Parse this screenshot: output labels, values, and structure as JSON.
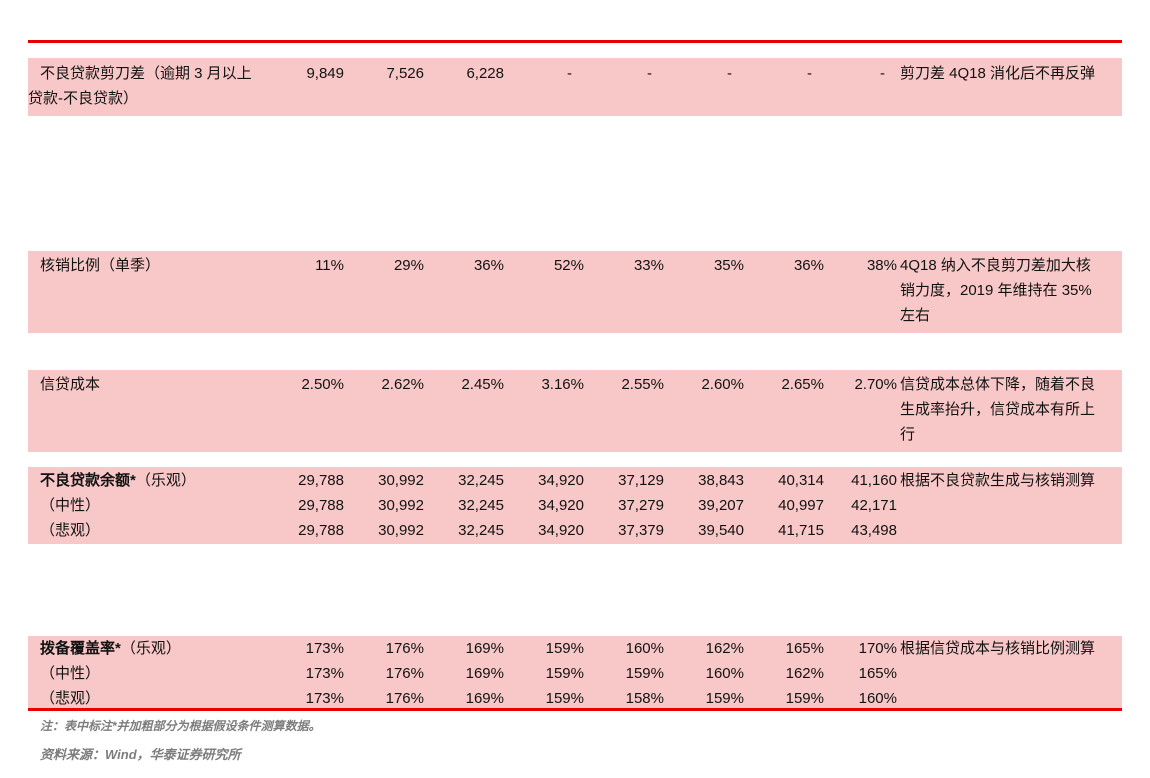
{
  "accent": {
    "rule_color": "#e80000",
    "row_bg": "#f8c8c8",
    "footer_gray": "#7d7d7d"
  },
  "table": {
    "sections": [
      {
        "note": "剪刀差 4Q18 消化后不再反弹",
        "rows": [
          {
            "strong": "",
            "label": "不良贷款剪刀差（逾期 3 月以上贷款-不良贷款）",
            "values": [
              "9,849",
              "7,526",
              "6,228",
              "-",
              "-",
              "-",
              "-",
              "-"
            ]
          }
        ]
      },
      {
        "note": "4Q18 纳入不良剪刀差加大核销力度，2019 年维持在 35%左右",
        "rows": [
          {
            "strong": "",
            "label": "核销比例（单季）",
            "values": [
              "11%",
              "29%",
              "36%",
              "52%",
              "33%",
              "35%",
              "36%",
              "38%"
            ]
          }
        ]
      },
      {
        "note": "信贷成本总体下降，随着不良生成率抬升，信贷成本有所上行",
        "rows": [
          {
            "strong": "",
            "label": "信贷成本",
            "values": [
              "2.50%",
              "2.62%",
              "2.45%",
              "3.16%",
              "2.55%",
              "2.60%",
              "2.65%",
              "2.70%"
            ]
          }
        ]
      },
      {
        "note": "根据不良贷款生成与核销测算",
        "rows": [
          {
            "strong": "不良贷款余额*",
            "label": "（乐观）",
            "values": [
              "29,788",
              "30,992",
              "32,245",
              "34,920",
              "37,129",
              "38,843",
              "40,314",
              "41,160"
            ]
          },
          {
            "strong": "",
            "label": "（中性）",
            "values": [
              "29,788",
              "30,992",
              "32,245",
              "34,920",
              "37,279",
              "39,207",
              "40,997",
              "42,171"
            ]
          },
          {
            "strong": "",
            "label": "（悲观）",
            "values": [
              "29,788",
              "30,992",
              "32,245",
              "34,920",
              "37,379",
              "39,540",
              "41,715",
              "43,498"
            ]
          }
        ]
      },
      {
        "note": "根据信贷成本与核销比例测算",
        "rows": [
          {
            "strong": "拨备覆盖率*",
            "label": "（乐观）",
            "values": [
              "173%",
              "176%",
              "169%",
              "159%",
              "160%",
              "162%",
              "165%",
              "170%"
            ]
          },
          {
            "strong": "",
            "label": "（中性）",
            "values": [
              "173%",
              "176%",
              "169%",
              "159%",
              "159%",
              "160%",
              "162%",
              "165%"
            ]
          },
          {
            "strong": "",
            "label": "（悲观）",
            "values": [
              "173%",
              "176%",
              "169%",
              "159%",
              "158%",
              "159%",
              "159%",
              "160%"
            ]
          }
        ]
      }
    ]
  },
  "footer": {
    "note": "注：表中标注*并加粗部分为根据假设条件测算数据。",
    "source": "资料来源：Wind，华泰证券研究所"
  }
}
